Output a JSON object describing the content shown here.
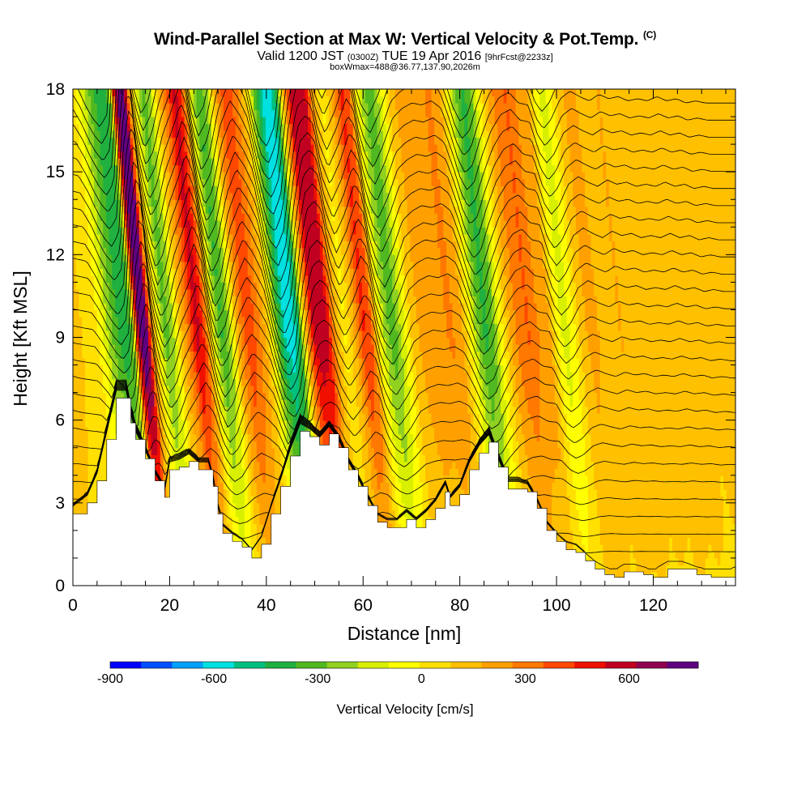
{
  "header": {
    "title": "Wind-Parallel Section at Max W: Vertical Velocity & Pot.Temp.",
    "copyright": "(C)",
    "valid_pre": "Valid 1200 JST",
    "valid_utc": "(0300Z)",
    "valid_date": "TUE 19 Apr 2016",
    "forecast": "[9hrFcst@2233z]",
    "box_info": "boxWmax=488@36.77,137.90,2026m"
  },
  "chart_data": {
    "type": "heatmap",
    "xlabel": "Distance [nm]",
    "ylabel": "Height [Kft MSL]",
    "xlim": [
      0,
      137
    ],
    "ylim": [
      0,
      18
    ],
    "x_ticks": [
      0,
      20,
      40,
      60,
      80,
      100,
      120
    ],
    "y_ticks": [
      0,
      3,
      6,
      9,
      12,
      15,
      18
    ],
    "colorbar": {
      "title": "Vertical Velocity [cm/s]",
      "range": [
        -900,
        800
      ],
      "tick_labels": [
        -900,
        -600,
        -300,
        0,
        300,
        600
      ],
      "colors": [
        "#0000ff",
        "#0050ff",
        "#00a0ff",
        "#00e0e0",
        "#00c080",
        "#20b040",
        "#50b820",
        "#90d020",
        "#d8f000",
        "#ffff00",
        "#ffe000",
        "#ffc000",
        "#ffa000",
        "#ff7800",
        "#ff4800",
        "#f01000",
        "#c00020",
        "#900050",
        "#600080"
      ]
    },
    "columns": [
      {
        "x": 0,
        "w": 80
      },
      {
        "x": 2,
        "w": 40
      },
      {
        "x": 4,
        "w": 20
      },
      {
        "x": 6,
        "w": 0
      },
      {
        "x": 8,
        "w": -150
      },
      {
        "x": 9.5,
        "w": -300
      },
      {
        "x": 11,
        "w": -420
      },
      {
        "x": 12.5,
        "w": -500
      },
      {
        "x": 14,
        "w": -380
      },
      {
        "x": 15,
        "w": 450
      },
      {
        "x": 16,
        "w": 760
      },
      {
        "x": 17,
        "w": 700
      },
      {
        "x": 18,
        "w": 200
      },
      {
        "x": 19.5,
        "w": -150
      },
      {
        "x": 21,
        "w": -380
      },
      {
        "x": 22.5,
        "w": -250
      },
      {
        "x": 24,
        "w": 50
      },
      {
        "x": 26,
        "w": 300
      },
      {
        "x": 27.5,
        "w": 520
      },
      {
        "x": 29,
        "w": 350
      },
      {
        "x": 31,
        "w": -200
      },
      {
        "x": 32.5,
        "w": -430
      },
      {
        "x": 34,
        "w": -300
      },
      {
        "x": 36,
        "w": 150
      },
      {
        "x": 38,
        "w": 380
      },
      {
        "x": 40,
        "w": 250
      },
      {
        "x": 42,
        "w": 60
      },
      {
        "x": 44,
        "w": -350
      },
      {
        "x": 45.5,
        "w": -600
      },
      {
        "x": 47,
        "w": -680
      },
      {
        "x": 48.5,
        "w": -500
      },
      {
        "x": 50,
        "w": 100
      },
      {
        "x": 51.5,
        "w": 480
      },
      {
        "x": 53,
        "w": 560
      },
      {
        "x": 54.5,
        "w": 480
      },
      {
        "x": 56,
        "w": 150
      },
      {
        "x": 58,
        "w": -80
      },
      {
        "x": 60,
        "w": 120
      },
      {
        "x": 62,
        "w": 400
      },
      {
        "x": 63.5,
        "w": 300
      },
      {
        "x": 65,
        "w": -80
      },
      {
        "x": 66.5,
        "w": -300
      },
      {
        "x": 68,
        "w": -400
      },
      {
        "x": 70,
        "w": -200
      },
      {
        "x": 72,
        "w": 60
      },
      {
        "x": 74,
        "w": 150
      },
      {
        "x": 76,
        "w": 200
      },
      {
        "x": 78,
        "w": 180
      },
      {
        "x": 80,
        "w": 220
      },
      {
        "x": 82,
        "w": 150
      },
      {
        "x": 84,
        "w": -100
      },
      {
        "x": 85.5,
        "w": -320
      },
      {
        "x": 87,
        "w": -450
      },
      {
        "x": 88.5,
        "w": -380
      },
      {
        "x": 90,
        "w": -150
      },
      {
        "x": 92,
        "w": 100
      },
      {
        "x": 94,
        "w": 250
      },
      {
        "x": 96,
        "w": 300
      },
      {
        "x": 98,
        "w": 200
      },
      {
        "x": 100,
        "w": 180
      },
      {
        "x": 102,
        "w": -100
      },
      {
        "x": 103.5,
        "w": -200
      },
      {
        "x": 105,
        "w": -120
      },
      {
        "x": 107,
        "w": 80
      },
      {
        "x": 109,
        "w": 150
      },
      {
        "x": 111,
        "w": 100
      },
      {
        "x": 113,
        "w": 60
      },
      {
        "x": 115,
        "w": 120
      },
      {
        "x": 117,
        "w": 80
      },
      {
        "x": 119,
        "w": 100
      },
      {
        "x": 121,
        "w": 60
      },
      {
        "x": 123,
        "w": 80
      },
      {
        "x": 125,
        "w": 60
      },
      {
        "x": 127,
        "w": 100
      },
      {
        "x": 129,
        "w": 60
      },
      {
        "x": 131,
        "w": 80
      },
      {
        "x": 133,
        "w": 40
      },
      {
        "x": 135,
        "w": 60
      },
      {
        "x": 137,
        "w": 40
      }
    ],
    "terrain": [
      {
        "x": 0,
        "h": 2.6
      },
      {
        "x": 3,
        "h": 3.0
      },
      {
        "x": 5,
        "h": 3.8
      },
      {
        "x": 7,
        "h": 5.3
      },
      {
        "x": 9,
        "h": 6.8
      },
      {
        "x": 11,
        "h": 6.8
      },
      {
        "x": 12,
        "h": 5.9
      },
      {
        "x": 13,
        "h": 5.3
      },
      {
        "x": 15,
        "h": 4.6
      },
      {
        "x": 17,
        "h": 3.8
      },
      {
        "x": 19,
        "h": 3.2
      },
      {
        "x": 20,
        "h": 4.2
      },
      {
        "x": 22,
        "h": 4.3
      },
      {
        "x": 24,
        "h": 4.5
      },
      {
        "x": 26,
        "h": 4.2
      },
      {
        "x": 28,
        "h": 4.2
      },
      {
        "x": 29,
        "h": 3.6
      },
      {
        "x": 30,
        "h": 2.6
      },
      {
        "x": 31,
        "h": 1.9
      },
      {
        "x": 33,
        "h": 1.6
      },
      {
        "x": 35,
        "h": 1.4
      },
      {
        "x": 37,
        "h": 1.0
      },
      {
        "x": 39,
        "h": 1.5
      },
      {
        "x": 41,
        "h": 2.6
      },
      {
        "x": 43,
        "h": 3.6
      },
      {
        "x": 45,
        "h": 4.7
      },
      {
        "x": 47,
        "h": 5.6
      },
      {
        "x": 49,
        "h": 5.4
      },
      {
        "x": 51,
        "h": 5.1
      },
      {
        "x": 53,
        "h": 5.5
      },
      {
        "x": 55,
        "h": 5.0
      },
      {
        "x": 57,
        "h": 4.2
      },
      {
        "x": 59,
        "h": 3.6
      },
      {
        "x": 61,
        "h": 2.9
      },
      {
        "x": 63,
        "h": 2.3
      },
      {
        "x": 65,
        "h": 2.1
      },
      {
        "x": 67,
        "h": 2.1
      },
      {
        "x": 69,
        "h": 2.4
      },
      {
        "x": 71,
        "h": 2.1
      },
      {
        "x": 73,
        "h": 2.4
      },
      {
        "x": 75,
        "h": 2.8
      },
      {
        "x": 77,
        "h": 3.4
      },
      {
        "x": 78,
        "h": 2.9
      },
      {
        "x": 80,
        "h": 3.3
      },
      {
        "x": 82,
        "h": 4.2
      },
      {
        "x": 84,
        "h": 4.8
      },
      {
        "x": 86,
        "h": 5.2
      },
      {
        "x": 88,
        "h": 4.3
      },
      {
        "x": 90,
        "h": 3.5
      },
      {
        "x": 92,
        "h": 3.5
      },
      {
        "x": 94,
        "h": 3.4
      },
      {
        "x": 96,
        "h": 2.8
      },
      {
        "x": 98,
        "h": 2.0
      },
      {
        "x": 100,
        "h": 1.6
      },
      {
        "x": 102,
        "h": 1.3
      },
      {
        "x": 104,
        "h": 1.2
      },
      {
        "x": 106,
        "h": 0.9
      },
      {
        "x": 108,
        "h": 0.6
      },
      {
        "x": 110,
        "h": 0.4
      },
      {
        "x": 112,
        "h": 0.3
      },
      {
        "x": 114,
        "h": 0.5
      },
      {
        "x": 116,
        "h": 0.5
      },
      {
        "x": 118,
        "h": 0.4
      },
      {
        "x": 120,
        "h": 0.3
      },
      {
        "x": 123,
        "h": 0.6
      },
      {
        "x": 126,
        "h": 0.6
      },
      {
        "x": 129,
        "h": 0.4
      },
      {
        "x": 132,
        "h": 0.3
      },
      {
        "x": 135,
        "h": 0.3
      },
      {
        "x": 137,
        "h": 0.4
      }
    ]
  }
}
